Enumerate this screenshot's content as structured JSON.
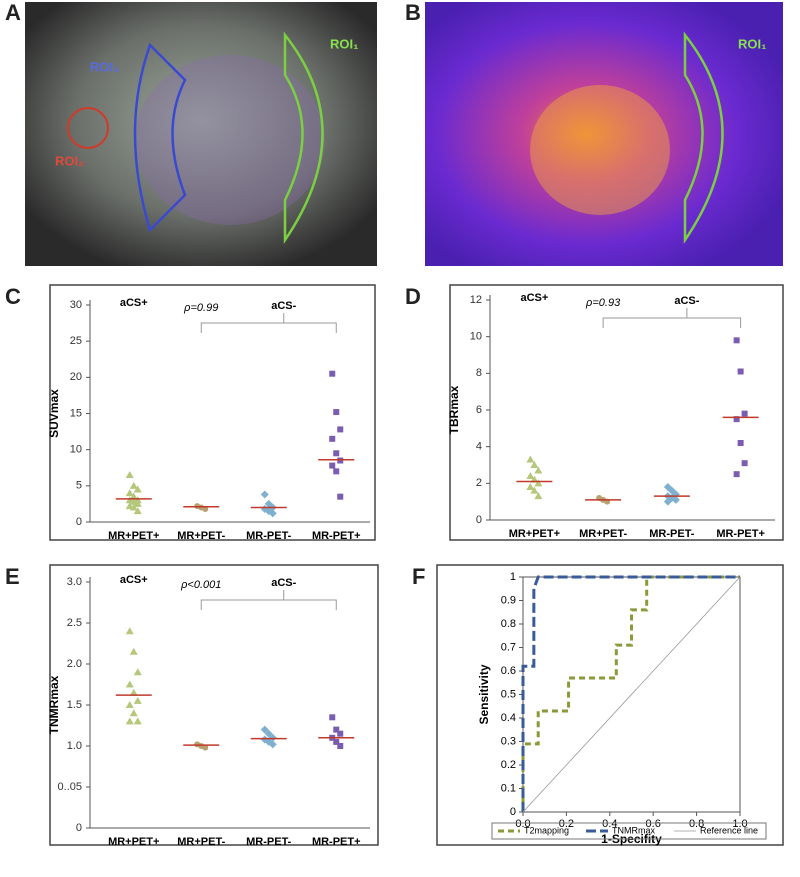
{
  "images": [
    {
      "letter": "A",
      "labels": [
        "ROI₃",
        "ROI₁",
        "ROI₂"
      ]
    },
    {
      "letter": "B",
      "labels": [
        "ROI₁"
      ]
    }
  ],
  "chart_data": [
    {
      "type": "strip",
      "panel": "C",
      "ylabel": "SUVmax",
      "categories": [
        "MR+PET+",
        "MR+PET-",
        "MR-PET-",
        "MR-PET+"
      ],
      "points": [
        [
          6.5,
          5,
          4.5,
          4,
          3.5,
          3,
          3,
          2.8,
          2.5,
          2.2,
          2,
          1.5
        ],
        [
          2.2,
          2,
          1.8
        ],
        [
          3.8,
          2.5,
          2,
          1.8,
          1.5,
          1.2
        ],
        [
          20.5,
          15.2,
          12.8,
          11.5,
          9.5,
          8.5,
          7.8,
          7,
          3.5
        ]
      ],
      "means": [
        3.2,
        2.1,
        2,
        8.6
      ],
      "colors": [
        "#b5c77a",
        "#b8a070",
        "#7fb0d0",
        "#7a5db0"
      ],
      "mean_color": "#c0392b",
      "ylim": [
        0,
        30
      ],
      "yticks": [
        0,
        5,
        10,
        15,
        20,
        25,
        30
      ],
      "annotations": [
        "aCS+",
        "ρ=0.99",
        "aCS-"
      ]
    },
    {
      "type": "strip",
      "panel": "D",
      "ylabel": "TBRmax",
      "categories": [
        "MR+PET+",
        "MR+PET-",
        "MR-PET-",
        "MR-PET+"
      ],
      "points": [
        [
          3.3,
          3,
          2.7,
          2.4,
          2.2,
          2,
          1.8,
          1.6,
          1.3
        ],
        [
          1.2,
          1.1,
          1.0
        ],
        [
          1.8,
          1.6,
          1.4,
          1.3,
          1.2,
          1.1,
          1.0
        ],
        [
          9.8,
          8.1,
          5.8,
          5.5,
          4.2,
          3.1,
          2.5
        ]
      ],
      "means": [
        2.1,
        1.1,
        1.3,
        5.6
      ],
      "colors": [
        "#b5c77a",
        "#b8a070",
        "#7fb0d0",
        "#7a5db0"
      ],
      "mean_color": "#c0392b",
      "ylim": [
        0,
        12
      ],
      "yticks": [
        0,
        2,
        4,
        6,
        8,
        10,
        12
      ],
      "annotations": [
        "aCS+",
        "ρ=0.93",
        "aCS-"
      ]
    },
    {
      "type": "strip",
      "panel": "E",
      "ylabel": "TNMRmax",
      "categories": [
        "MR+PET+",
        "MR+PET-",
        "MR-PET-",
        "MR-PET+"
      ],
      "points": [
        [
          2.4,
          2.15,
          1.9,
          1.75,
          1.65,
          1.55,
          1.5,
          1.4,
          1.3,
          1.3
        ],
        [
          1.02,
          1.0,
          0.98
        ],
        [
          1.2,
          1.15,
          1.1,
          1.08,
          1.05,
          1.02
        ],
        [
          1.35,
          1.2,
          1.15,
          1.1,
          1.05,
          1.0
        ]
      ],
      "means": [
        1.62,
        1.01,
        1.09,
        1.1
      ],
      "colors": [
        "#b5c77a",
        "#b8a070",
        "#7fb0d0",
        "#7a5db0"
      ],
      "mean_color": "#c0392b",
      "ylim": [
        0,
        3
      ],
      "yticks": [
        0,
        {
          "value": 0.5,
          "label": "0..05"
        },
        {
          "value": 1,
          "label": "1.0"
        },
        {
          "value": 1.5,
          "label": "1.5"
        },
        {
          "value": 2,
          "label": "2.0"
        },
        {
          "value": 2.5,
          "label": "2.5"
        },
        {
          "value": 3,
          "label": "3.0"
        }
      ],
      "annotations": [
        "aCS+",
        "ρ<0.001",
        "aCS-"
      ]
    },
    {
      "type": "line",
      "panel": "F",
      "xlabel": "1-Specifity",
      "ylabel": "Sensitivity",
      "xlim": [
        0,
        1
      ],
      "ylim": [
        0,
        1
      ],
      "xticks": [
        {
          "value": 0,
          "label": "0.0"
        },
        0.2,
        0.4,
        0.6,
        0.8,
        {
          "value": 1,
          "label": "1.0"
        }
      ],
      "yticks": [
        0,
        0.1,
        0.2,
        0.3,
        0.4,
        0.5,
        0.6,
        0.7,
        0.8,
        0.9,
        1
      ],
      "series": [
        {
          "name": "T2mapping",
          "color": "#8a9a3a",
          "dash": "6,4",
          "x": [
            0,
            0,
            0.07,
            0.07,
            0.21,
            0.21,
            0.43,
            0.43,
            0.5,
            0.5,
            0.57,
            0.57,
            1
          ],
          "values": [
            0,
            0.29,
            0.29,
            0.43,
            0.43,
            0.57,
            0.57,
            0.71,
            0.71,
            0.86,
            0.86,
            1,
            1
          ]
        },
        {
          "name": "TNMRmax",
          "color": "#3a5a9a",
          "dash": "10,4",
          "x": [
            0,
            0,
            0.05,
            0.05,
            0.07,
            1
          ],
          "values": [
            0,
            0.62,
            0.62,
            0.95,
            1,
            1
          ]
        },
        {
          "name": "Reference line",
          "color": "#999999",
          "dash": "",
          "x": [
            0,
            1
          ],
          "values": [
            0,
            1
          ]
        }
      ]
    }
  ]
}
